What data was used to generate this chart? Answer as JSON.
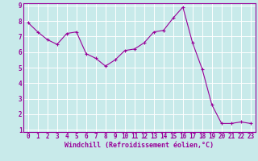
{
  "x": [
    0,
    1,
    2,
    3,
    4,
    5,
    6,
    7,
    8,
    9,
    10,
    11,
    12,
    13,
    14,
    15,
    16,
    17,
    18,
    19,
    20,
    21,
    22,
    23
  ],
  "y": [
    7.9,
    7.3,
    6.8,
    6.5,
    7.2,
    7.3,
    5.9,
    5.6,
    5.1,
    5.5,
    6.1,
    6.2,
    6.6,
    7.3,
    7.4,
    8.2,
    8.9,
    6.6,
    4.9,
    2.6,
    1.4,
    1.4,
    1.5,
    1.4
  ],
  "line_color": "#990099",
  "marker": "+",
  "marker_size": 3,
  "marker_linewidth": 0.8,
  "line_width": 0.8,
  "bg_color": "#c8eaea",
  "grid_color": "#ffffff",
  "xlabel": "Windchill (Refroidissement éolien,°C)",
  "xlabel_fontsize": 6,
  "tick_fontsize": 5.5,
  "ylim": [
    1,
    9
  ],
  "xlim": [
    -0.5,
    23.5
  ],
  "yticks": [
    1,
    2,
    3,
    4,
    5,
    6,
    7,
    8,
    9
  ],
  "xticks": [
    0,
    1,
    2,
    3,
    4,
    5,
    6,
    7,
    8,
    9,
    10,
    11,
    12,
    13,
    14,
    15,
    16,
    17,
    18,
    19,
    20,
    21,
    22,
    23
  ]
}
